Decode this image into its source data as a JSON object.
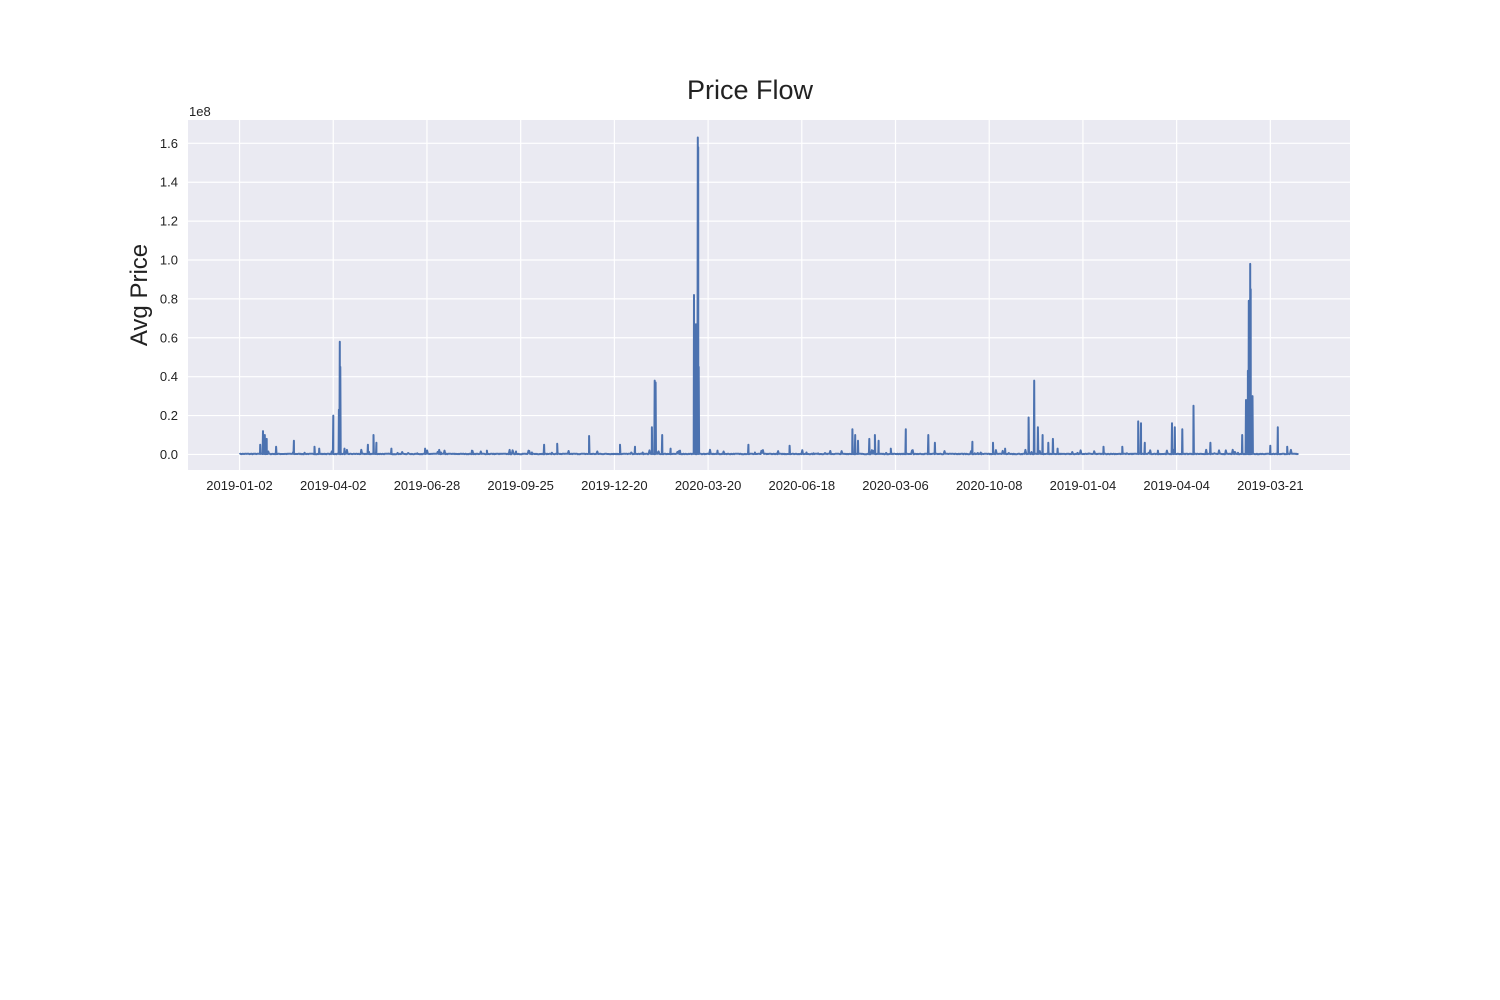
{
  "chart_data": {
    "type": "line",
    "title": "Price Flow",
    "xlabel": "",
    "ylabel": "Avg Price",
    "y_offset_text": "1e8",
    "ylim": [
      -0.08,
      1.72
    ],
    "y_scale_factor": 100000000,
    "grid": true,
    "legend": "none",
    "colors": {
      "background": "#eaeaf2",
      "grid": "#ffffff",
      "line": "#4c72b0",
      "text": "#222222"
    },
    "x_ticks": [
      {
        "pos": 0,
        "label": "2019-01-02"
      },
      {
        "pos": 1,
        "label": "2019-04-02"
      },
      {
        "pos": 2,
        "label": "2019-06-28"
      },
      {
        "pos": 3,
        "label": "2019-09-25"
      },
      {
        "pos": 4,
        "label": "2019-12-20"
      },
      {
        "pos": 5,
        "label": "2020-03-20"
      },
      {
        "pos": 6,
        "label": "2020-06-18"
      },
      {
        "pos": 7,
        "label": "2020-03-06"
      },
      {
        "pos": 8,
        "label": "2020-10-08"
      },
      {
        "pos": 9,
        "label": "2019-01-04"
      },
      {
        "pos": 10,
        "label": "2019-04-04"
      },
      {
        "pos": 11,
        "label": "2019-03-21"
      }
    ],
    "xlim": [
      -0.55,
      11.85
    ],
    "y_ticks": [
      {
        "value": 0.0,
        "label": "0.0"
      },
      {
        "value": 0.2,
        "label": "0.2"
      },
      {
        "value": 0.4,
        "label": "0.4"
      },
      {
        "value": 0.6,
        "label": "0.6"
      },
      {
        "value": 0.8,
        "label": "0.8"
      },
      {
        "value": 1.0,
        "label": "1.0"
      },
      {
        "value": 1.2,
        "label": "1.2"
      },
      {
        "value": 1.4,
        "label": "1.4"
      },
      {
        "value": 1.6,
        "label": "1.6"
      }
    ],
    "series": [
      {
        "x_range": [
          0,
          11.3
        ],
        "baseline": 0.003,
        "spikes": [
          [
            0.22,
            0.05
          ],
          [
            0.25,
            0.12
          ],
          [
            0.27,
            0.1
          ],
          [
            0.29,
            0.08
          ],
          [
            0.39,
            0.04
          ],
          [
            0.58,
            0.07
          ],
          [
            0.8,
            0.04
          ],
          [
            0.85,
            0.03
          ],
          [
            1.0,
            0.2
          ],
          [
            1.07,
            0.58
          ],
          [
            1.075,
            0.45
          ],
          [
            1.06,
            0.23
          ],
          [
            1.12,
            0.03
          ],
          [
            1.37,
            0.05
          ],
          [
            1.43,
            0.1
          ],
          [
            1.46,
            0.06
          ],
          [
            1.62,
            0.03
          ],
          [
            1.98,
            0.03
          ],
          [
            2.15,
            0.01
          ],
          [
            2.48,
            0.02
          ],
          [
            2.64,
            0.02
          ],
          [
            2.95,
            0.015
          ],
          [
            3.12,
            0.01
          ],
          [
            3.25,
            0.05
          ],
          [
            3.39,
            0.055
          ],
          [
            3.73,
            0.095
          ],
          [
            4.06,
            0.05
          ],
          [
            4.22,
            0.04
          ],
          [
            4.4,
            0.14
          ],
          [
            4.43,
            0.38
          ],
          [
            4.44,
            0.37
          ],
          [
            4.51,
            0.1
          ],
          [
            4.6,
            0.03
          ],
          [
            4.7,
            0.02
          ],
          [
            4.85,
            0.82
          ],
          [
            4.87,
            0.67
          ],
          [
            4.89,
            1.63
          ],
          [
            4.895,
            1.58
          ],
          [
            4.9,
            0.45
          ],
          [
            5.1,
            0.02
          ],
          [
            5.43,
            0.05
          ],
          [
            5.5,
            0.01
          ],
          [
            5.87,
            0.045
          ],
          [
            6.05,
            0.01
          ],
          [
            6.54,
            0.13
          ],
          [
            6.57,
            0.1
          ],
          [
            6.6,
            0.07
          ],
          [
            6.72,
            0.08
          ],
          [
            6.78,
            0.1
          ],
          [
            6.82,
            0.07
          ],
          [
            6.95,
            0.03
          ],
          [
            7.11,
            0.13
          ],
          [
            7.35,
            0.1
          ],
          [
            7.42,
            0.06
          ],
          [
            7.82,
            0.065
          ],
          [
            8.04,
            0.06
          ],
          [
            8.17,
            0.03
          ],
          [
            8.42,
            0.19
          ],
          [
            8.48,
            0.38
          ],
          [
            8.52,
            0.14
          ],
          [
            8.57,
            0.1
          ],
          [
            8.63,
            0.06
          ],
          [
            8.68,
            0.08
          ],
          [
            8.73,
            0.03
          ],
          [
            9.22,
            0.04
          ],
          [
            9.42,
            0.04
          ],
          [
            9.59,
            0.17
          ],
          [
            9.62,
            0.16
          ],
          [
            9.66,
            0.06
          ],
          [
            9.8,
            0.02
          ],
          [
            9.95,
            0.16
          ],
          [
            9.98,
            0.14
          ],
          [
            10.06,
            0.13
          ],
          [
            10.18,
            0.25
          ],
          [
            10.36,
            0.06
          ],
          [
            10.7,
            0.1
          ],
          [
            10.74,
            0.28
          ],
          [
            10.76,
            0.43
          ],
          [
            10.77,
            0.79
          ],
          [
            10.785,
            0.98
          ],
          [
            10.79,
            0.85
          ],
          [
            10.81,
            0.3
          ],
          [
            11.0,
            0.045
          ],
          [
            11.08,
            0.14
          ],
          [
            11.18,
            0.04
          ]
        ]
      }
    ]
  }
}
